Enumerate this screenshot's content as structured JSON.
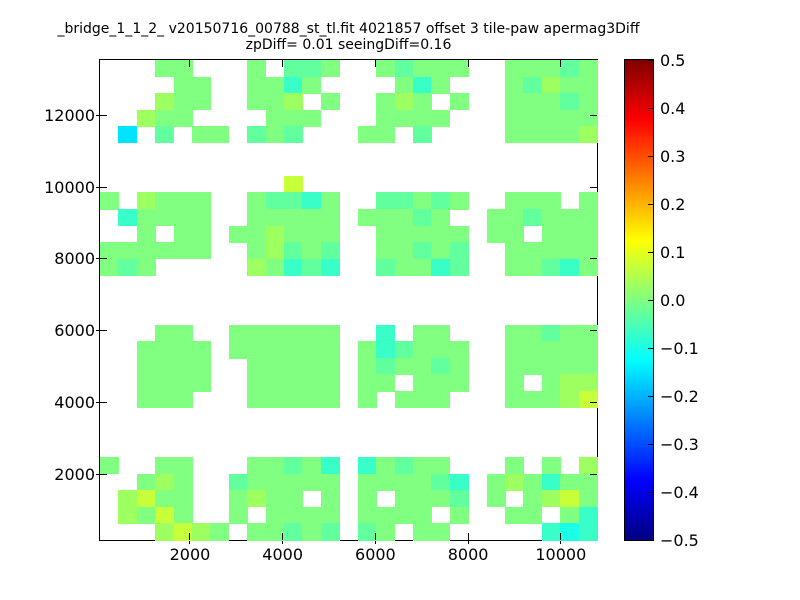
{
  "title": {
    "line1": "_bridge_1_1_2_ v20150716_00788_st_tl.fit 4021857 offset 3 tile-paw apermag3Diff",
    "line2": "zpDiff= 0.01 seeingDiff=0.16"
  },
  "chart_data": {
    "type": "heatmap",
    "title": "_bridge_1_1_2_ v20150716_00788_st_tl.fit 4021857 offset 3 tile-paw apermag3Diff",
    "subtitle": "zpDiff= 0.01 seeingDiff=0.16",
    "colormap": "jet",
    "background": "#ffffff",
    "axis_color": "#000000",
    "xlim": [
      60,
      10780
    ],
    "ylim": [
      190,
      13530
    ],
    "x_ticks": [
      2000,
      4000,
      6000,
      8000,
      10000
    ],
    "x_tick_labels": [
      "2000",
      "4000",
      "6000",
      "8000",
      "10000"
    ],
    "y_ticks": [
      2000,
      4000,
      6000,
      8000,
      10000,
      12000
    ],
    "y_tick_labels": [
      "2000",
      "4000",
      "6000",
      "8000",
      "10000",
      "12000"
    ],
    "colorbar": {
      "min": -0.5,
      "max": 0.5,
      "position": "right",
      "ticks": [
        0.5,
        0.4,
        0.3,
        0.2,
        0.1,
        0.0,
        -0.1,
        -0.2,
        -0.3,
        -0.4,
        -0.5
      ],
      "tick_labels": [
        "0.5",
        "0.4",
        "0.3",
        "0.2",
        "0.1",
        "0.0",
        "−0.1",
        "−0.2",
        "−0.3",
        "−0.4",
        "−0.5"
      ]
    },
    "grid": {
      "cols": 27,
      "rows": 29,
      "empty_char": ".",
      "value_legend": {
        "a": 0.0,
        "b": -0.03,
        "c": -0.07,
        "d": 0.03,
        "e": 0.07,
        "f": -0.1,
        "C": -0.15
      },
      "pattern": [
        "...aa...a.bba..abaaa..aaaba",
        "....aa..aaca....aca...abdaa",
        "...daa..aad.a..ada.a..aaaba",
        "..daa....aaa...aaaa...aaaaa",
        ".C.b.aa.bab...aa.b....aaaad",
        "...........................",
        "...........................",
        "..........e................",
        "a.daaa..abbca..bbaba..aaa.a",
        ".caaaa..aaaaa.aaaba..aabaaa",
        "..a.aa.aadaaa..aaaaa.aa.aaa",
        "aaaaaa..adbab..aabab..aaaaa",
        "aba.....dacbc..baacb..aabca",
        "...........................",
        "...........................",
        "...........................",
        "...aa..aaaaaa..c.aa...aabaa",
        "..aaaa.aaaaaa.acbaaa..aaaaa",
        "..aaaa..aaaaa.abaaba..aaaaa",
        "..aaaa..aaaaa.aa.aaa..a.add",
        "..aaa...aaaaa.a.aaa...aaade",
        "...........................",
        "...........................",
        "...........................",
        "a..aa...aabac.cabaa...a.a.d",
        "..ada..baaaaa.aaaabc.adacaa",
        ".deaa..adaa.a.a.aaab.a.adea",
        ".daea..a.aaaa.aaaa.a..aa.ac",
        "...deda.aabab.ba.aa.....cfc"
      ]
    }
  }
}
